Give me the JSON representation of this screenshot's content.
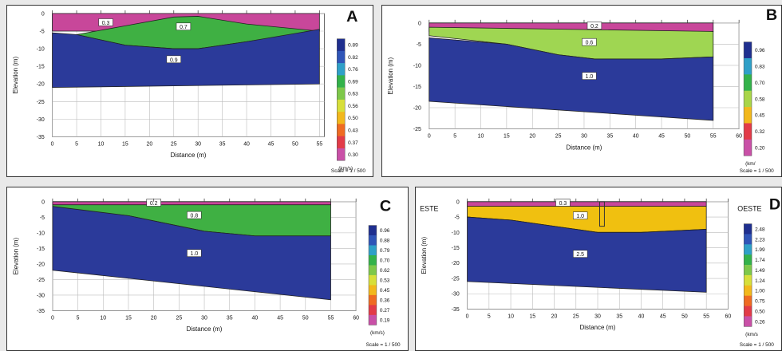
{
  "panels": [
    {
      "id": "a",
      "letter": "A",
      "xlabel": "Distance (m)",
      "ylabel": "Elevation (m)",
      "scale": "Scale = 1 / 500",
      "xlim": [
        0,
        56
      ],
      "ylim": [
        -35,
        0
      ],
      "xticks": [
        0,
        5,
        10,
        15,
        20,
        25,
        30,
        35,
        40,
        45,
        50,
        55
      ],
      "yticks": [
        0,
        -5,
        -10,
        -15,
        -20,
        -25,
        -30,
        -35
      ],
      "legend_unit": "(km/s)",
      "legend_values": [
        "0.89",
        "0.82",
        "0.76",
        "0.69",
        "0.63",
        "0.56",
        "0.50",
        "0.43",
        "0.37",
        "0.30"
      ],
      "layer_labels": [
        {
          "text": "0.3",
          "x": 11,
          "y": -2.5
        },
        {
          "text": "0.7",
          "x": 27,
          "y": -3.7
        },
        {
          "text": "0.9",
          "x": 25,
          "y": -13
        }
      ],
      "chart_data": {
        "type": "area",
        "x": [
          0,
          55
        ],
        "layers": [
          {
            "value": "0.3",
            "color": "#c8479a",
            "top_x": [
              0,
              55
            ],
            "top_y": [
              0,
              0
            ],
            "bottom_x": [
              0,
              55
            ],
            "bottom_y": [
              -5,
              -5
            ]
          },
          {
            "value": "0.7",
            "color": "#3fb043",
            "top_x": [
              5,
              15,
              25,
              30,
              40,
              55
            ],
            "top_y": [
              -6,
              -3.5,
              -1,
              -0.8,
              -3,
              -5
            ],
            "bottom_x": [
              5,
              15,
              25,
              30,
              40,
              55
            ],
            "bottom_y": [
              -6,
              -9,
              -10,
              -10,
              -8,
              -5
            ]
          },
          {
            "value": "0.9",
            "color": "#2b3a9a",
            "top_x": [
              0,
              5,
              15,
              25,
              30,
              40,
              55
            ],
            "top_y": [
              -5.5,
              -6,
              -9,
              -10,
              -10,
              -8,
              -4.5
            ],
            "bottom_x": [
              0,
              55
            ],
            "bottom_y": [
              -21,
              -20
            ]
          }
        ]
      }
    },
    {
      "id": "b",
      "letter": "B",
      "xlabel": "Distance (m)",
      "ylabel": "Elevation (m)",
      "scale": "Scale = 1 / 500",
      "xlim": [
        0,
        60
      ],
      "ylim": [
        -25,
        0
      ],
      "xticks": [
        0,
        5,
        10,
        15,
        20,
        25,
        30,
        35,
        40,
        45,
        50,
        55,
        60
      ],
      "yticks": [
        0,
        -5,
        -10,
        -15,
        -20,
        -25
      ],
      "legend_unit": "(km/",
      "legend_values": [
        "0.96",
        "0.83",
        "0.70",
        "0.58",
        "0.45",
        "0.32",
        "0.20"
      ],
      "layer_labels": [
        {
          "text": "0.2",
          "x": 32,
          "y": -0.6
        },
        {
          "text": "0.6",
          "x": 31,
          "y": -4.5
        },
        {
          "text": "1.0",
          "x": 31,
          "y": -12.5
        }
      ],
      "chart_data": {
        "type": "area",
        "x": [
          0,
          55
        ],
        "layers": [
          {
            "value": "0.2",
            "color": "#c8479a",
            "top_x": [
              0,
              55
            ],
            "top_y": [
              0,
              0
            ],
            "bottom_x": [
              0,
              55
            ],
            "bottom_y": [
              -2,
              -2
            ]
          },
          {
            "value": "0.6",
            "color": "#9fd652",
            "top_x": [
              0,
              55
            ],
            "top_y": [
              -1,
              -2
            ],
            "bottom_x": [
              0,
              15,
              25,
              32,
              45,
              55
            ],
            "bottom_y": [
              -3,
              -5,
              -7.5,
              -8.5,
              -8.5,
              -8
            ]
          },
          {
            "value": "1.0",
            "color": "#2b3a9a",
            "top_x": [
              0,
              15,
              25,
              32,
              45,
              55
            ],
            "top_y": [
              -3.5,
              -5,
              -7.5,
              -8.5,
              -8.5,
              -8
            ],
            "bottom_x": [
              0,
              55
            ],
            "bottom_y": [
              -18.5,
              -23
            ]
          }
        ]
      }
    },
    {
      "id": "c",
      "letter": "C",
      "xlabel": "Distance (m)",
      "ylabel": "Elevation (m)",
      "scale": "Scale = 1 / 500",
      "xlim": [
        0,
        60
      ],
      "ylim": [
        -35,
        0
      ],
      "xticks": [
        0,
        5,
        10,
        15,
        20,
        25,
        30,
        35,
        40,
        45,
        50,
        55,
        60
      ],
      "yticks": [
        0,
        -5,
        -10,
        -15,
        -20,
        -25,
        -30,
        -35
      ],
      "legend_unit": "(km/s)",
      "legend_values": [
        "0.96",
        "0.88",
        "0.79",
        "0.70",
        "0.62",
        "0.53",
        "0.45",
        "0.36",
        "0.27",
        "0.19"
      ],
      "layer_labels": [
        {
          "text": "0.2",
          "x": 20,
          "y": -0.3
        },
        {
          "text": "0.8",
          "x": 28,
          "y": -4.3
        },
        {
          "text": "1.0",
          "x": 28,
          "y": -16.5
        }
      ],
      "chart_data": {
        "type": "area",
        "x": [
          0,
          55
        ],
        "layers": [
          {
            "value": "0.2",
            "color": "#c8479a",
            "top_x": [
              0,
              55
            ],
            "top_y": [
              0,
              0
            ],
            "bottom_x": [
              0,
              55
            ],
            "bottom_y": [
              -1,
              -1
            ]
          },
          {
            "value": "0.8",
            "color": "#3fb043",
            "top_x": [
              0,
              55
            ],
            "top_y": [
              -1,
              -1
            ],
            "bottom_x": [
              0,
              15,
              30,
              40,
              55
            ],
            "bottom_y": [
              -2,
              -4.5,
              -9.5,
              -11,
              -11
            ]
          },
          {
            "value": "1.0",
            "color": "#2b3a9a",
            "top_x": [
              0,
              15,
              30,
              40,
              55
            ],
            "top_y": [
              -1.5,
              -4.5,
              -9.5,
              -11,
              -11
            ],
            "bottom_x": [
              0,
              55
            ],
            "bottom_y": [
              -22,
              -31.5
            ]
          }
        ]
      }
    },
    {
      "id": "d",
      "letter": "D",
      "left_label": "ESTE",
      "right_label": "OESTE",
      "xlabel": "Distance (m)",
      "ylabel": "Elevation (m)",
      "scale": "Scale = 1 / 500",
      "xlim": [
        0,
        60
      ],
      "ylim": [
        -35,
        0
      ],
      "xticks": [
        0,
        5,
        10,
        15,
        20,
        25,
        30,
        35,
        40,
        45,
        50,
        55,
        60
      ],
      "yticks": [
        0,
        -5,
        -10,
        -15,
        -20,
        -25,
        -30,
        -35
      ],
      "legend_unit": "(km/s",
      "legend_values": [
        "2.48",
        "2.23",
        "1.99",
        "1.74",
        "1.49",
        "1.24",
        "1.00",
        "0.75",
        "0.50",
        "0.26"
      ],
      "layer_labels": [
        {
          "text": "0.3",
          "x": 22,
          "y": -0.3
        },
        {
          "text": "1.0",
          "x": 26,
          "y": -4.5
        },
        {
          "text": "2.5",
          "x": 26,
          "y": -17
        }
      ],
      "well": {
        "x": 31,
        "top": 0,
        "bottom": -8
      },
      "chart_data": {
        "type": "area",
        "x": [
          0,
          55
        ],
        "layers": [
          {
            "value": "0.3",
            "color": "#c8479a",
            "top_x": [
              0,
              55
            ],
            "top_y": [
              0,
              0
            ],
            "bottom_x": [
              0,
              55
            ],
            "bottom_y": [
              -1.5,
              -1.5
            ]
          },
          {
            "value": "1.0",
            "color": "#f0c010",
            "top_x": [
              0,
              55
            ],
            "top_y": [
              -1.5,
              -1.5
            ],
            "bottom_x": [
              0,
              10,
              20,
              30,
              40,
              55
            ],
            "bottom_y": [
              -5,
              -6,
              -8,
              -10,
              -10,
              -9
            ]
          },
          {
            "value": "2.5",
            "color": "#2b3a9a",
            "top_x": [
              0,
              10,
              20,
              30,
              40,
              55
            ],
            "top_y": [
              -5,
              -6,
              -8,
              -10,
              -10,
              -9
            ],
            "bottom_x": [
              0,
              55
            ],
            "bottom_y": [
              -26,
              -29.5
            ]
          }
        ]
      }
    }
  ],
  "legend_colors": {
    "a": [
      "#1f2f8f",
      "#2f55b8",
      "#2fa0c8",
      "#33b24a",
      "#7ec84a",
      "#d7df3a",
      "#f2b81c",
      "#ef6b22",
      "#e23b48",
      "#c950a7"
    ],
    "b": [
      "#1f2f8f",
      "#2fa0c8",
      "#33b24a",
      "#a9d548",
      "#f2b81c",
      "#e23b48",
      "#c950a7"
    ],
    "c": [
      "#1f2f8f",
      "#2f55b8",
      "#2fa0c8",
      "#33b24a",
      "#7ec84a",
      "#d7df3a",
      "#f2b81c",
      "#ef6b22",
      "#e23b48",
      "#c950a7"
    ],
    "d": [
      "#1f2f8f",
      "#2f55b8",
      "#2fa0c8",
      "#33b24a",
      "#7ec84a",
      "#d7df3a",
      "#f2b81c",
      "#ef6b22",
      "#e23b48",
      "#c950a7"
    ]
  }
}
